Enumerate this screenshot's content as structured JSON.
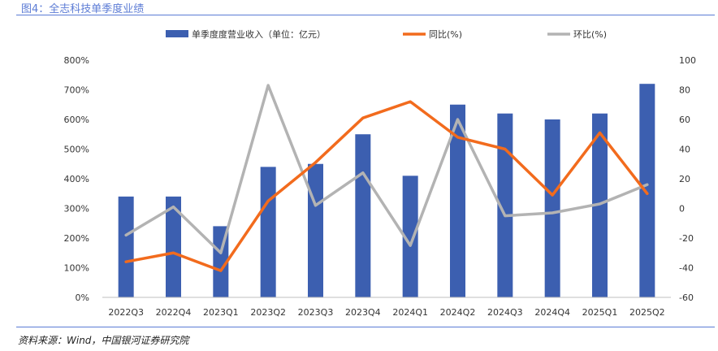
{
  "figure_title": "图4：全志科技单季度业绩",
  "source": "资料来源：Wind，中国银河证券研究院",
  "chart_data": {
    "type": "bar",
    "categories": [
      "2022Q3",
      "2022Q4",
      "2023Q1",
      "2023Q2",
      "2023Q3",
      "2023Q4",
      "2024Q1",
      "2024Q2",
      "2024Q3",
      "2024Q4",
      "2025Q1",
      "2025Q2"
    ],
    "series": [
      {
        "name": "单季度度营业收入（单位：亿元）",
        "type": "bar",
        "axis": "left",
        "color": "#3c5fb0",
        "values": [
          3.4,
          3.4,
          2.4,
          4.4,
          4.5,
          5.5,
          4.1,
          6.5,
          6.2,
          6.0,
          6.2,
          7.2
        ]
      },
      {
        "name": "同比(%)",
        "type": "line",
        "axis": "right",
        "color": "#f26b1d",
        "values": [
          -36,
          -30,
          -42,
          5,
          31,
          61,
          72,
          48,
          40,
          9,
          51,
          10
        ]
      },
      {
        "name": "环比(%)",
        "type": "line",
        "axis": "right",
        "color": "#b3b3b3",
        "values": [
          -18,
          1,
          -30,
          83,
          2,
          24,
          -25,
          60,
          -5,
          -3,
          3,
          16
        ]
      }
    ],
    "left_axis": {
      "min": 0,
      "max": 8,
      "ticks": [
        "0%",
        "100%",
        "200%",
        "300%",
        "400%",
        "500%",
        "600%",
        "700%",
        "800%"
      ]
    },
    "right_axis": {
      "min": -60,
      "max": 100,
      "ticks": [
        "-60",
        "-40",
        "-20",
        "0",
        "20",
        "40",
        "60",
        "80",
        "100"
      ]
    },
    "legend_position": "top"
  }
}
